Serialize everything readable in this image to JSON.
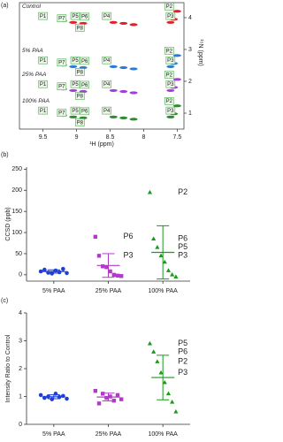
{
  "chart_data": [
    {
      "type": "nmr",
      "panel": "(a)",
      "xlabel": "¹H (ppm)",
      "ylabel": "¹⁵N (ppm)",
      "xlim": [
        9.85,
        7.4
      ],
      "xticks": [
        9.5,
        9.0,
        8.5,
        8.0,
        7.5
      ],
      "ylim": [
        0.5,
        4.47
      ],
      "yticks": [
        1,
        2,
        3,
        4
      ],
      "spectra": [
        {
          "name": "Control",
          "color": "#e0202a",
          "peaks": {
            "x": [
              9.2,
              9.05,
              8.9,
              8.45,
              8.3,
              8.15,
              7.6,
              7.5,
              7.55
            ],
            "y": [
              3.9,
              3.85,
              3.82,
              3.85,
              3.82,
              3.78,
              3.85,
              4.2,
              3.95
            ]
          },
          "labels": {
            "texts": [
              "P1",
              "P7",
              "P5",
              "P6",
              "P8",
              "P4",
              "P2",
              "P3"
            ],
            "x": [
              9.5,
              9.22,
              9.02,
              8.88,
              8.95,
              8.55,
              7.62,
              7.6
            ],
            "y": [
              4.05,
              3.98,
              4.05,
              4.03,
              3.68,
              4.05,
              4.35,
              4.05
            ]
          }
        },
        {
          "name": "5% PAA",
          "color": "#2b7bd6",
          "peaks": {
            "x": [
              9.2,
              9.05,
              8.9,
              8.45,
              8.3,
              8.15,
              7.6,
              7.5,
              7.55
            ],
            "y": [
              2.51,
              2.46,
              2.43,
              2.46,
              2.43,
              2.39,
              2.46,
              2.81,
              2.56
            ]
          },
          "labels": {
            "texts": [
              "P1",
              "P7",
              "P5",
              "P6",
              "P8",
              "P4",
              "P2",
              "P3"
            ],
            "x": [
              9.5,
              9.22,
              9.02,
              8.88,
              8.95,
              8.55,
              7.62,
              7.6
            ],
            "y": [
              2.66,
              2.59,
              2.66,
              2.64,
              2.29,
              2.66,
              2.96,
              2.66
            ]
          }
        },
        {
          "name": "25% PAA",
          "color": "#a23fd8",
          "peaks": {
            "x": [
              9.2,
              9.05,
              8.9,
              8.45,
              8.3,
              8.15,
              7.6,
              7.5,
              7.55
            ],
            "y": [
              1.76,
              1.71,
              1.68,
              1.71,
              1.68,
              1.64,
              1.71,
              2.06,
              1.81
            ]
          },
          "labels": {
            "texts": [
              "P1",
              "P7",
              "P5",
              "P6",
              "P8",
              "P4",
              "P2",
              "P3"
            ],
            "x": [
              9.5,
              9.22,
              9.02,
              8.88,
              8.95,
              8.55,
              7.62,
              7.6
            ],
            "y": [
              1.91,
              1.84,
              1.91,
              1.89,
              1.54,
              1.91,
              2.21,
              1.91
            ]
          }
        },
        {
          "name": "100% PAA",
          "color": "#2e8b2e",
          "peaks": {
            "x": [
              9.2,
              9.05,
              8.9,
              8.45,
              8.3,
              8.15,
              7.6,
              7.5,
              7.55
            ],
            "y": [
              0.93,
              0.88,
              0.85,
              0.88,
              0.85,
              0.81,
              0.88,
              1.23,
              0.98
            ]
          },
          "labels": {
            "texts": [
              "P1",
              "P7",
              "P5",
              "P6",
              "P8",
              "P4",
              "P2",
              "P3"
            ],
            "x": [
              9.5,
              9.22,
              9.02,
              8.88,
              8.95,
              8.55,
              7.62,
              7.6
            ],
            "y": [
              1.08,
              1.01,
              1.08,
              1.06,
              0.71,
              1.08,
              1.38,
              1.08
            ]
          }
        }
      ]
    },
    {
      "type": "dot",
      "panel": "(b)",
      "ylabel": "CCSD (ppb)",
      "ylim": [
        -15,
        255
      ],
      "yticks": [
        0,
        50,
        100,
        150,
        200,
        250
      ],
      "categories": [
        "5% PAA",
        "25% PAA",
        "100% PAA"
      ],
      "groups": [
        {
          "color": "#1f3fd6",
          "marker": "circle",
          "values": [
            8,
            12,
            5,
            3,
            10,
            6,
            14,
            4
          ],
          "mean": 7.8,
          "sd": 3.9
        },
        {
          "color": "#b33ac8",
          "marker": "square",
          "values": [
            90,
            45,
            20,
            18,
            8,
            0,
            -2,
            -3
          ],
          "mean": 22,
          "sd": 28
        },
        {
          "color": "#1a9a1a",
          "marker": "triangle",
          "values": [
            195,
            85,
            65,
            45,
            30,
            10,
            0,
            -5
          ],
          "mean": 53,
          "sd": 63
        }
      ],
      "annotations": [
        {
          "text": "P6",
          "category": 1,
          "y": 90
        },
        {
          "text": "P3",
          "category": 1,
          "y": 45
        },
        {
          "text": "P2",
          "category": 2,
          "y": 195
        },
        {
          "text": "P6",
          "category": 2,
          "y": 85
        },
        {
          "text": "P5",
          "category": 2,
          "y": 65
        },
        {
          "text": "P3",
          "category": 2,
          "y": 45
        }
      ]
    },
    {
      "type": "dot",
      "panel": "(c)",
      "ylabel": "Intensity Ratio to Control",
      "ylim": [
        0,
        4
      ],
      "yticks": [
        0,
        1,
        2,
        3,
        4
      ],
      "categories": [
        "5% PAA",
        "25% PAA",
        "100% PAA"
      ],
      "groups": [
        {
          "color": "#1f3fd6",
          "marker": "circle",
          "values": [
            1.05,
            0.95,
            1.0,
            0.9,
            1.1,
            0.98,
            1.02,
            0.92
          ],
          "mean": 0.99,
          "sd": 0.07
        },
        {
          "color": "#b33ac8",
          "marker": "square",
          "values": [
            1.2,
            0.75,
            1.1,
            0.95,
            1.0,
            0.85,
            1.05,
            0.9
          ],
          "mean": 0.98,
          "sd": 0.14
        },
        {
          "color": "#1a9a1a",
          "marker": "triangle",
          "values": [
            2.9,
            2.6,
            2.25,
            1.85,
            1.5,
            1.1,
            0.8,
            0.45
          ],
          "mean": 1.68,
          "sd": 0.8
        }
      ],
      "annotations": [
        {
          "text": "P5",
          "category": 2,
          "y": 2.9
        },
        {
          "text": "P6",
          "category": 2,
          "y": 2.6
        },
        {
          "text": "P2",
          "category": 2,
          "y": 2.25
        },
        {
          "text": "P3",
          "category": 2,
          "y": 1.85
        }
      ]
    }
  ]
}
